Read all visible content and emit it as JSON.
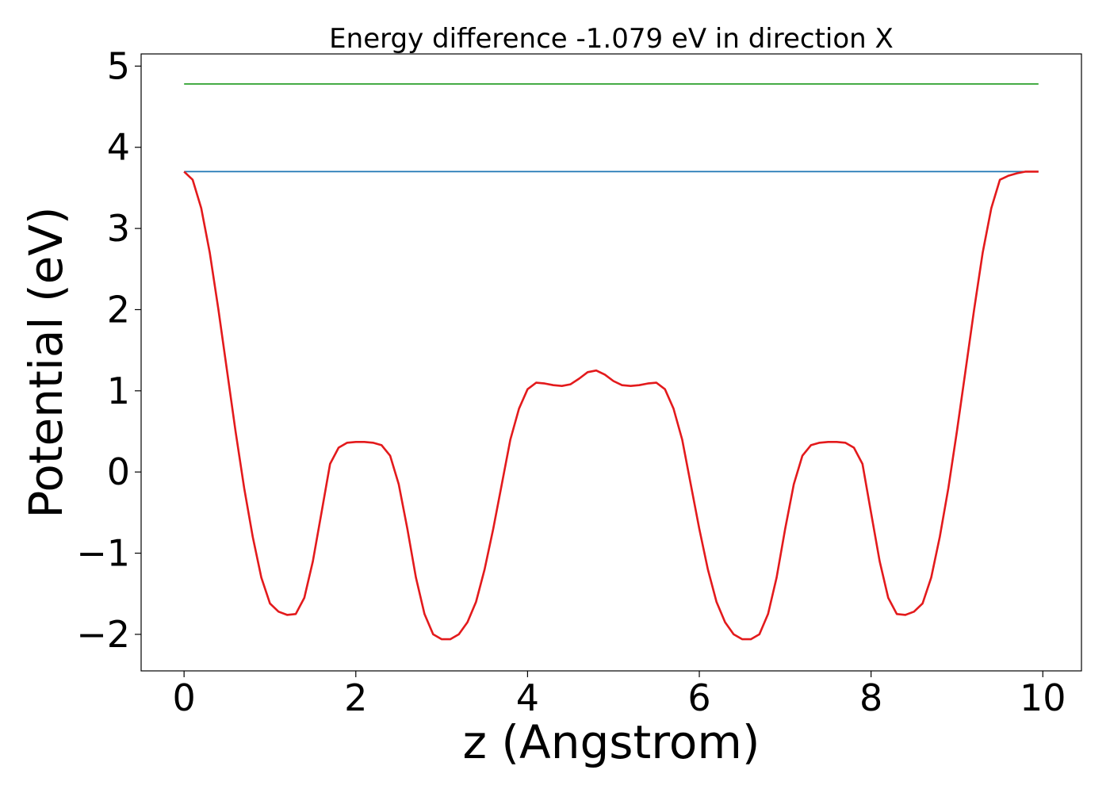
{
  "chart_data": {
    "type": "line",
    "title": "Energy difference -1.079 eV in direction X",
    "xlabel": "z (Angstrom)",
    "ylabel": "Potential (eV)",
    "xlim": [
      -0.5,
      10.45
    ],
    "ylim": [
      -2.45,
      5.15
    ],
    "x_ticks": [
      0,
      2,
      4,
      6,
      8,
      10
    ],
    "x_tick_labels": [
      "0",
      "2",
      "4",
      "6",
      "8",
      "10"
    ],
    "y_ticks": [
      -2,
      -1,
      0,
      1,
      2,
      3,
      4,
      5
    ],
    "y_tick_labels": [
      "−2",
      "−1",
      "0",
      "1",
      "2",
      "3",
      "4",
      "5"
    ],
    "grid": false,
    "series": [
      {
        "color": "#2ca02c",
        "x": [
          0,
          9.95
        ],
        "y": [
          4.78,
          4.78
        ]
      },
      {
        "color": "#1f77b4",
        "x": [
          0,
          9.95
        ],
        "y": [
          3.7,
          3.7
        ]
      },
      {
        "color": "#e31a1c",
        "x": [
          0,
          0.1,
          0.2,
          0.3,
          0.4,
          0.5,
          0.6,
          0.7,
          0.8,
          0.9,
          1.0,
          1.1,
          1.2,
          1.3,
          1.4,
          1.5,
          1.6,
          1.7,
          1.8,
          1.9,
          2.0,
          2.1,
          2.2,
          2.3,
          2.4,
          2.5,
          2.6,
          2.7,
          2.8,
          2.9,
          3.0,
          3.1,
          3.2,
          3.3,
          3.4,
          3.5,
          3.6,
          3.7,
          3.8,
          3.9,
          4.0,
          4.1,
          4.2,
          4.3,
          4.4,
          4.5,
          4.6,
          4.7,
          4.8,
          4.9,
          5.0,
          5.1,
          5.2,
          5.3,
          5.4,
          5.5,
          5.6,
          5.7,
          5.8,
          5.9,
          6.0,
          6.1,
          6.2,
          6.3,
          6.4,
          6.5,
          6.6,
          6.7,
          6.8,
          6.9,
          7.0,
          7.1,
          7.2,
          7.3,
          7.4,
          7.5,
          7.6,
          7.7,
          7.8,
          7.9,
          8.0,
          8.1,
          8.2,
          8.3,
          8.4,
          8.5,
          8.6,
          8.7,
          8.8,
          8.9,
          9.0,
          9.1,
          9.2,
          9.3,
          9.4,
          9.5,
          9.6,
          9.7,
          9.8,
          9.9,
          9.95
        ],
        "y": [
          3.7,
          3.6,
          3.25,
          2.7,
          2.0,
          1.25,
          0.5,
          -0.2,
          -0.8,
          -1.3,
          -1.62,
          -1.72,
          -1.76,
          -1.75,
          -1.55,
          -1.1,
          -0.5,
          0.1,
          0.3,
          0.36,
          0.37,
          0.37,
          0.36,
          0.33,
          0.2,
          -0.15,
          -0.7,
          -1.3,
          -1.75,
          -2.0,
          -2.06,
          -2.06,
          -2.0,
          -1.85,
          -1.6,
          -1.2,
          -0.7,
          -0.15,
          0.4,
          0.78,
          1.02,
          1.1,
          1.09,
          1.07,
          1.06,
          1.08,
          1.15,
          1.23,
          1.25,
          1.2,
          1.12,
          1.07,
          1.06,
          1.07,
          1.09,
          1.1,
          1.02,
          0.78,
          0.4,
          -0.15,
          -0.7,
          -1.2,
          -1.6,
          -1.85,
          -2.0,
          -2.06,
          -2.06,
          -2.0,
          -1.75,
          -1.3,
          -0.7,
          -0.15,
          0.2,
          0.33,
          0.36,
          0.37,
          0.37,
          0.36,
          0.3,
          0.1,
          -0.5,
          -1.1,
          -1.55,
          -1.75,
          -1.76,
          -1.72,
          -1.62,
          -1.3,
          -0.8,
          -0.2,
          0.5,
          1.25,
          2.0,
          2.7,
          3.25,
          3.6,
          3.65,
          3.68,
          3.7,
          3.7,
          3.7
        ]
      }
    ]
  }
}
